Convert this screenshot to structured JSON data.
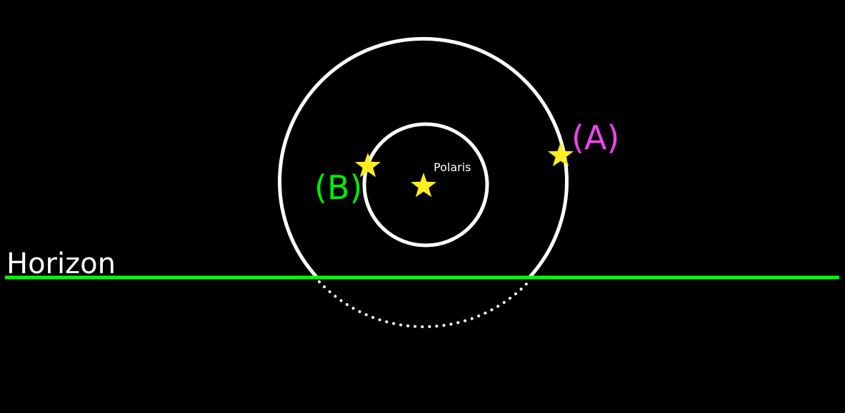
{
  "diagram": {
    "horizon_label": "Horizon",
    "polaris_label": "Polaris",
    "star_a_label": "(A)",
    "star_b_label": "(B)",
    "colors": {
      "background": "#000000",
      "horizon_line": "#00ff00",
      "circles": "#ffffff",
      "stars": "#ffee22",
      "label_a": "#ee44ee",
      "label_b": "#00ee00",
      "polaris_label": "#ffffff",
      "horizon_label": "#ffffff"
    },
    "icons": {
      "polaris": "star-icon",
      "star_a": "star-icon",
      "star_b": "star-icon"
    }
  }
}
